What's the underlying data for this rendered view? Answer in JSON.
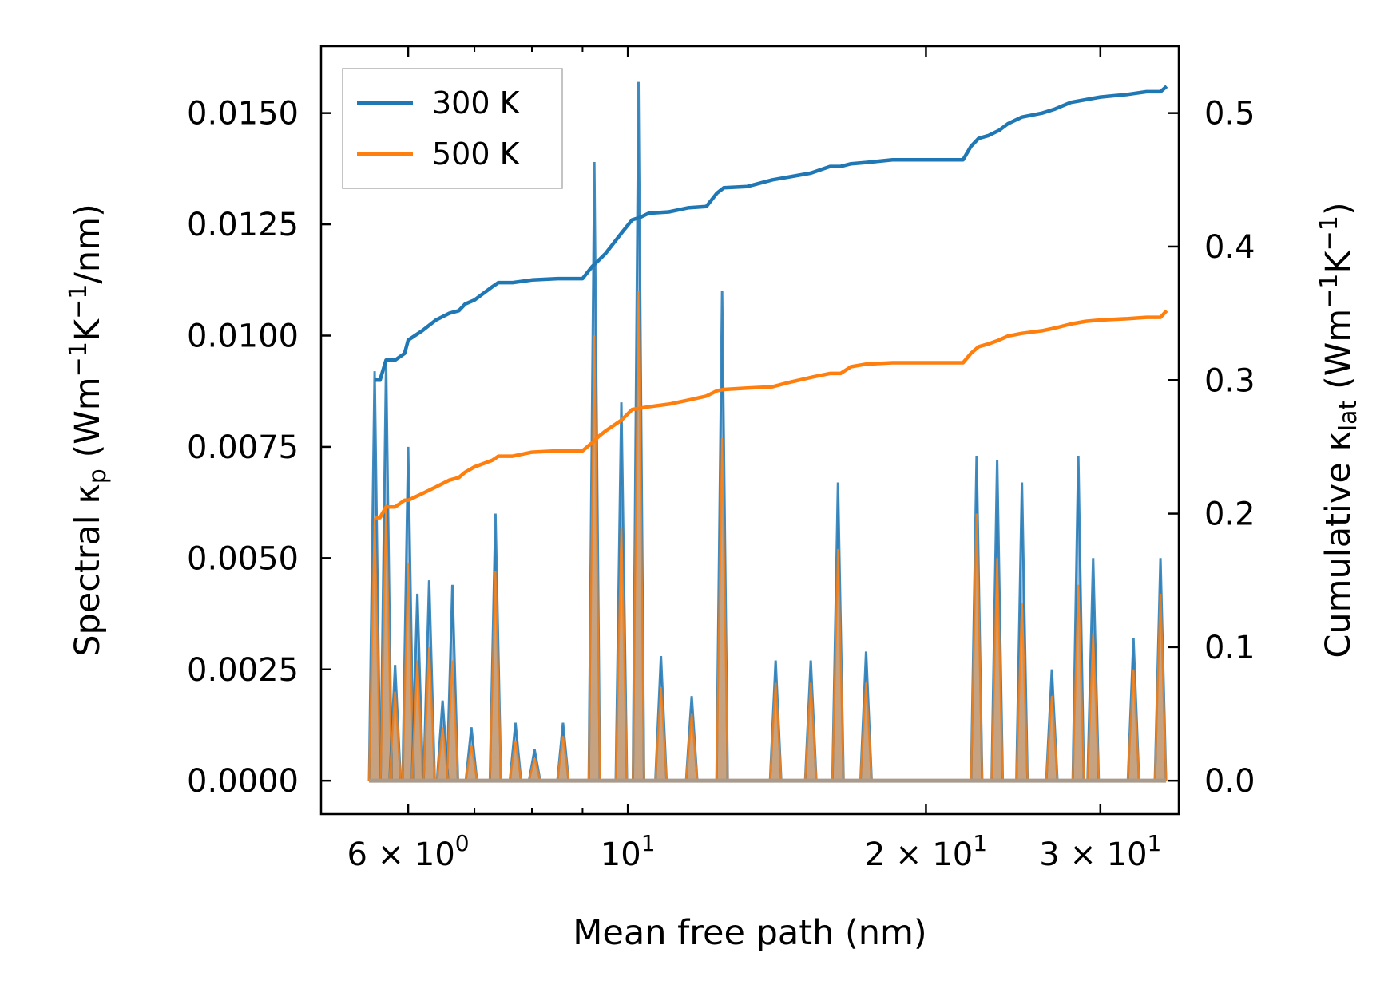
{
  "chart_data": {
    "type": "line",
    "title": "",
    "xlabel": "Mean free path (nm)",
    "ylabel_left": {
      "main": "Spectral κ",
      "sub": "p",
      "unit_open": " (Wm",
      "sup1": "−1",
      "mid": "K",
      "sup2": "−1",
      "unit_close": "/nm)"
    },
    "ylabel_right": {
      "main": "Cumulative κ",
      "sub": "lat",
      "unit_open": " (Wm",
      "sup1": "−1",
      "mid": "K",
      "sup2": "−1",
      "unit_close": ")"
    },
    "x_scale": "log",
    "xlim": [
      4.9,
      36.0
    ],
    "ylim_left": [
      -0.00075,
      0.0165
    ],
    "ylim_right": [
      -0.025,
      0.55
    ],
    "x_ticks": [
      {
        "value": 6,
        "mantissa": "6",
        "times": "×",
        "base": "10",
        "exp": "0"
      },
      {
        "value": 10,
        "mantissa": "",
        "times": "",
        "base": "10",
        "exp": "1"
      },
      {
        "value": 20,
        "mantissa": "2",
        "times": "×",
        "base": "10",
        "exp": "1"
      },
      {
        "value": 30,
        "mantissa": "3",
        "times": "×",
        "base": "10",
        "exp": "1"
      }
    ],
    "x_minor_ticks": [
      7,
      8,
      9
    ],
    "y_left_ticks": [
      {
        "value": 0.0,
        "label": "0.0000"
      },
      {
        "value": 0.0025,
        "label": "0.0025"
      },
      {
        "value": 0.005,
        "label": "0.0050"
      },
      {
        "value": 0.0075,
        "label": "0.0075"
      },
      {
        "value": 0.01,
        "label": "0.0100"
      },
      {
        "value": 0.0125,
        "label": "0.0125"
      },
      {
        "value": 0.015,
        "label": "0.0150"
      }
    ],
    "y_right_ticks": [
      {
        "value": 0.0,
        "label": "0.0"
      },
      {
        "value": 0.1,
        "label": "0.1"
      },
      {
        "value": 0.2,
        "label": "0.2"
      },
      {
        "value": 0.3,
        "label": "0.3"
      },
      {
        "value": 0.4,
        "label": "0.4"
      },
      {
        "value": 0.5,
        "label": "0.5"
      }
    ],
    "legend": {
      "position": "top-left",
      "entries": [
        "300 K",
        "500 K"
      ]
    },
    "colors": {
      "300 K": "#1f77b4",
      "500 K": "#ff7f0e",
      "fill_blue": "#7aa8d2",
      "fill_orange": "#f0a460",
      "fill_overlap": "#c8a07a"
    },
    "spectral_peaks": [
      {
        "x": 5.55,
        "y300": 0.0092,
        "y500": 0.0059
      },
      {
        "x": 5.7,
        "y300": 0.0094,
        "y500": 0.0062
      },
      {
        "x": 5.82,
        "y300": 0.0026,
        "y500": 0.002
      },
      {
        "x": 6.0,
        "y300": 0.0075,
        "y500": 0.0049
      },
      {
        "x": 6.13,
        "y300": 0.0042,
        "y500": 0.0027
      },
      {
        "x": 6.3,
        "y300": 0.0045,
        "y500": 0.003
      },
      {
        "x": 6.5,
        "y300": 0.0018,
        "y500": 0.0012
      },
      {
        "x": 6.65,
        "y300": 0.0044,
        "y500": 0.0027
      },
      {
        "x": 6.95,
        "y300": 0.0012,
        "y500": 0.0008
      },
      {
        "x": 7.35,
        "y300": 0.006,
        "y500": 0.0047
      },
      {
        "x": 7.7,
        "y300": 0.0013,
        "y500": 0.0009
      },
      {
        "x": 8.05,
        "y300": 0.0007,
        "y500": 0.0005
      },
      {
        "x": 8.6,
        "y300": 0.0013,
        "y500": 0.001
      },
      {
        "x": 9.25,
        "y300": 0.0139,
        "y500": 0.01
      },
      {
        "x": 9.85,
        "y300": 0.0085,
        "y500": 0.0057
      },
      {
        "x": 10.25,
        "y300": 0.0157,
        "y500": 0.011
      },
      {
        "x": 10.8,
        "y300": 0.0028,
        "y500": 0.0021
      },
      {
        "x": 11.6,
        "y300": 0.0019,
        "y500": 0.0015
      },
      {
        "x": 12.45,
        "y300": 0.011,
        "y500": 0.0077
      },
      {
        "x": 14.1,
        "y300": 0.0027,
        "y500": 0.0022
      },
      {
        "x": 15.3,
        "y300": 0.0027,
        "y500": 0.0022
      },
      {
        "x": 16.3,
        "y300": 0.0067,
        "y500": 0.0052
      },
      {
        "x": 17.4,
        "y300": 0.0029,
        "y500": 0.0022
      },
      {
        "x": 22.5,
        "y300": 0.0073,
        "y500": 0.006
      },
      {
        "x": 23.6,
        "y300": 0.0072,
        "y500": 0.005
      },
      {
        "x": 25.0,
        "y300": 0.0067,
        "y500": 0.004
      },
      {
        "x": 26.8,
        "y300": 0.0025,
        "y500": 0.0019
      },
      {
        "x": 28.5,
        "y300": 0.0073,
        "y500": 0.0044
      },
      {
        "x": 29.5,
        "y300": 0.005,
        "y500": 0.0033
      },
      {
        "x": 32.4,
        "y300": 0.0032,
        "y500": 0.0025
      },
      {
        "x": 34.5,
        "y300": 0.005,
        "y500": 0.0042
      }
    ],
    "cumulative_300K": {
      "x": [
        5.55,
        5.62,
        5.7,
        5.82,
        5.95,
        6.0,
        6.2,
        6.4,
        6.6,
        6.75,
        6.85,
        7.0,
        7.3,
        7.4,
        7.65,
        8.0,
        8.5,
        9.0,
        9.2,
        9.35,
        9.5,
        9.85,
        10.1,
        10.3,
        10.5,
        11.0,
        11.5,
        12.0,
        12.3,
        12.5,
        13.2,
        14.0,
        14.5,
        15.3,
        16.0,
        16.4,
        16.8,
        17.4,
        18.5,
        20.0,
        21.8,
        22.2,
        22.6,
        23.1,
        23.7,
        24.2,
        25.0,
        26.2,
        27.0,
        28.0,
        29.0,
        30.0,
        32.0,
        33.4,
        34.5,
        35.0
      ],
      "y": [
        0.3,
        0.3,
        0.315,
        0.315,
        0.32,
        0.33,
        0.337,
        0.345,
        0.35,
        0.352,
        0.357,
        0.36,
        0.37,
        0.373,
        0.373,
        0.375,
        0.376,
        0.376,
        0.385,
        0.39,
        0.395,
        0.41,
        0.42,
        0.422,
        0.425,
        0.426,
        0.429,
        0.43,
        0.44,
        0.444,
        0.445,
        0.45,
        0.452,
        0.455,
        0.46,
        0.46,
        0.462,
        0.463,
        0.465,
        0.465,
        0.465,
        0.475,
        0.481,
        0.483,
        0.487,
        0.492,
        0.497,
        0.5,
        0.503,
        0.508,
        0.51,
        0.512,
        0.514,
        0.516,
        0.516,
        0.52
      ]
    },
    "cumulative_500K": {
      "x": [
        5.55,
        5.62,
        5.7,
        5.82,
        5.95,
        6.0,
        6.2,
        6.4,
        6.6,
        6.75,
        6.85,
        7.0,
        7.3,
        7.4,
        7.65,
        8.0,
        8.5,
        9.0,
        9.2,
        9.35,
        9.5,
        9.85,
        10.1,
        10.3,
        10.5,
        11.0,
        11.5,
        12.0,
        12.3,
        12.5,
        13.2,
        14.0,
        14.5,
        15.3,
        16.0,
        16.4,
        16.8,
        17.4,
        18.5,
        20.0,
        21.8,
        22.2,
        22.6,
        23.1,
        23.7,
        24.2,
        25.0,
        26.2,
        27.0,
        28.0,
        29.0,
        30.0,
        32.0,
        33.4,
        34.5,
        35.0
      ],
      "y": [
        0.197,
        0.197,
        0.205,
        0.205,
        0.21,
        0.21,
        0.215,
        0.22,
        0.225,
        0.227,
        0.231,
        0.235,
        0.24,
        0.243,
        0.243,
        0.246,
        0.247,
        0.247,
        0.253,
        0.258,
        0.262,
        0.27,
        0.278,
        0.279,
        0.28,
        0.282,
        0.285,
        0.288,
        0.292,
        0.293,
        0.294,
        0.295,
        0.298,
        0.302,
        0.305,
        0.305,
        0.31,
        0.312,
        0.313,
        0.313,
        0.313,
        0.32,
        0.325,
        0.327,
        0.33,
        0.333,
        0.335,
        0.337,
        0.339,
        0.342,
        0.344,
        0.345,
        0.346,
        0.347,
        0.347,
        0.352
      ]
    }
  }
}
